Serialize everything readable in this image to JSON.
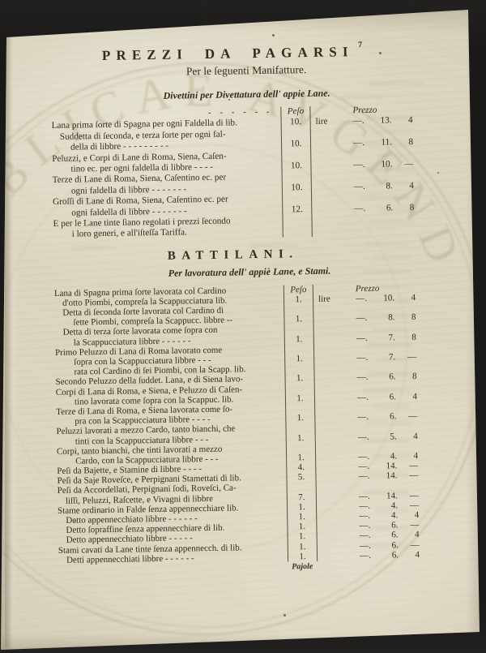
{
  "colors": {
    "background": "#1d1b18",
    "paper": "#dcd6c1",
    "ink": "#352b1d",
    "stamp": "#a69c78"
  },
  "page": {
    "number": "7",
    "title": "PREZZI DA PAGARSI",
    "subtitle": "Per le ſeguenti Manifatture.",
    "catchword": "Pajole"
  },
  "stamp": {
    "arc_text": "PERI PVBLICAE AVGEND"
  },
  "section_divettini": {
    "heading": "Divettini per Divettatura dell' appie Lane.",
    "columns": {
      "peso": "Peſo",
      "prezzo": "Prezzo"
    },
    "lines": [
      {
        "t": "- - - - - -",
        "i": 3,
        "hdr": true
      },
      {
        "t": "Lana prima ſorte di Spagna per ogni Faldella di lib.",
        "i": 0,
        "p": "10.",
        "z": [
          "lire",
          "—.",
          "13.",
          "4"
        ]
      },
      {
        "t": "Suddetta di ſeconda, e terza ſorte per ogni fal-",
        "i": 1
      },
      {
        "t": "della di libbre  -  -  -   -   -  - -  -  -",
        "i": 2,
        "p": "10.",
        "z": [
          "",
          "—.",
          "11.",
          "8"
        ]
      },
      {
        "t": "Peluzzi, e Corpi di Lane di Roma, Siena, Caſen-",
        "i": 0
      },
      {
        "t": "tino ec. per ogni faldella di libbre  -  -  - -",
        "i": 2,
        "p": "10.",
        "z": [
          "",
          "—.",
          "10.",
          "—"
        ]
      },
      {
        "t": "Terze di Lane di Roma, Siena, Caſentino ec. per",
        "i": 0
      },
      {
        "t": "ogni faldella di libbre -   -   -  -   -  -  -",
        "i": 2,
        "p": "10.",
        "z": [
          "",
          "—.",
          "8.",
          "4"
        ]
      },
      {
        "t": "Groſſi di Lane di Roma, Siena, Caſentino ec. per",
        "i": 0
      },
      {
        "t": "ogni faldella di libbre  -   -  -   -  -   - -",
        "i": 2,
        "p": "12.",
        "z": [
          "",
          "—.",
          "6.",
          "8"
        ]
      },
      {
        "t": "E per le Lane tinte ſiano regolati i prezzi ſecondo",
        "i": 0
      },
      {
        "t": "i loro generi, e all'iſteſſa Tariffa.",
        "i": 2
      }
    ]
  },
  "section_battilani": {
    "heading": "BATTILANI.",
    "subheading": "Per lavoratura dell' appiè Lane, e Stami.",
    "columns": {
      "peso": "Peſo",
      "prezzo": "Prezzo"
    },
    "lines": [
      {
        "t": "Lana di Spagna prima ſorte lavorata col Cardino",
        "i": 0,
        "hdr": true
      },
      {
        "t": "d'otto Piombi, compreſa la Scappucciatura lib.",
        "i": 1,
        "p": "1.",
        "z": [
          "lire",
          "—.",
          "10.",
          "4"
        ]
      },
      {
        "t": "Detta di ſeconda ſorte lavorata col Cardino di",
        "i": 1
      },
      {
        "t": "ſette Piombi, compreſa la Scappucc. libbre --",
        "i": 2,
        "p": "1.",
        "z": [
          "",
          "—.",
          "8.",
          "8"
        ]
      },
      {
        "t": "Detta di terza ſorte lavorata come ſopra con",
        "i": 1
      },
      {
        "t": "la Scappucciatura libbre  -  -  -  -  -  -",
        "i": 2,
        "p": "1.",
        "z": [
          "",
          "—.",
          "7.",
          "8"
        ]
      },
      {
        "t": "Primo Peluzzo di Lana di Roma lavorato come",
        "i": 0
      },
      {
        "t": "ſopra con la Scappucciatura libbre  -  -  -",
        "i": 2,
        "p": "1.",
        "z": [
          "",
          "—.",
          "7.",
          "—"
        ]
      },
      {
        "t": "rata col Cardino di ſei Piombi, con la Scapp. lib.",
        "i": 2
      },
      {
        "t": "Secondo Peluzzo della ſuddet. Lana, e di Siena lavo-",
        "i": 0,
        "p": "1.",
        "z": [
          "",
          "—.",
          "6.",
          "8"
        ]
      },
      {
        "t": "Corpi di Lana di Roma, e Siena, e Peluzzo di Caſen-",
        "i": 0
      },
      {
        "t": "tino lavorata come ſopra con la Scappuc. lib.",
        "i": 2,
        "p": "1.",
        "z": [
          "",
          "—.",
          "6.",
          "4"
        ]
      },
      {
        "t": "Terze di Lana di Roma, e Siena lavorata come ſo-",
        "i": 0
      },
      {
        "t": "pra con la Scappucciatura libbre  -  -  - -",
        "i": 2,
        "p": "1.",
        "z": [
          "",
          "—.",
          "6.",
          "—"
        ]
      },
      {
        "t": "Peluzzi lavorati a mezzo Cardo, tanto bianchi, che",
        "i": 0
      },
      {
        "t": "tinti con la Scappucciatura libbre  -  -  -",
        "i": 2,
        "p": "1.",
        "z": [
          "",
          "—.",
          "5.",
          "4"
        ]
      },
      {
        "t": "Corpi, tanto bianchi, che tinti lavorati a mezzo",
        "i": 0
      },
      {
        "t": "Cardo, con la Scappucciatura libbre  -  - -",
        "i": 2,
        "p": "1.",
        "z": [
          "",
          "—.",
          "4.",
          "4"
        ]
      },
      {
        "t": "Peſi da Bajette, e Stamine di libbre  -  -  - -",
        "i": 0,
        "p": "4.",
        "z": [
          "",
          "—.",
          "14.",
          "—"
        ]
      },
      {
        "t": "Peſi da Saje Roveſce, e Perpignani Stamettati di lib.",
        "i": 0,
        "p": "5.",
        "z": [
          "",
          "—.",
          "14.",
          "—"
        ]
      },
      {
        "t": "Peſi da Accordellati, Perpignani ſodi, Roveſci, Ca-",
        "i": 0
      },
      {
        "t": "liſſi, Peluzzi, Raſcette, e Vivagni di libbre",
        "i": 1,
        "p": "7.",
        "z": [
          "",
          "—.",
          "14.",
          "—"
        ]
      },
      {
        "t": "Stame ordinario in Falde ſenza appennecchiare lib.",
        "i": 0,
        "p": "1.",
        "z": [
          "",
          "—.",
          "4.",
          "—"
        ]
      },
      {
        "t": "Detto appennecchiato libbre  -  -  -  -  - -",
        "i": 1,
        "p": "1.",
        "z": [
          "",
          "—.",
          "4.",
          "4"
        ]
      },
      {
        "t": "Detto ſopraffine ſenza appennecchiare di lib.",
        "i": 1,
        "p": "1.",
        "z": [
          "",
          "—.",
          "6.",
          "—"
        ]
      },
      {
        "t": "Detto appennecchiato libbre  -  -  -  - -",
        "i": 1,
        "p": "1.",
        "z": [
          "",
          "—.",
          "6.",
          "4"
        ]
      },
      {
        "t": "Stami cavati da Lane tinte ſenza appennecch. di lib.",
        "i": 0,
        "p": "1.",
        "z": [
          "",
          "—.",
          "6.",
          "—"
        ]
      },
      {
        "t": "Detti appennecchiati libbre  -  -  -  -  -  -",
        "i": 1,
        "p": "1.",
        "z": [
          "",
          "—.",
          "6.",
          "4"
        ]
      }
    ]
  }
}
